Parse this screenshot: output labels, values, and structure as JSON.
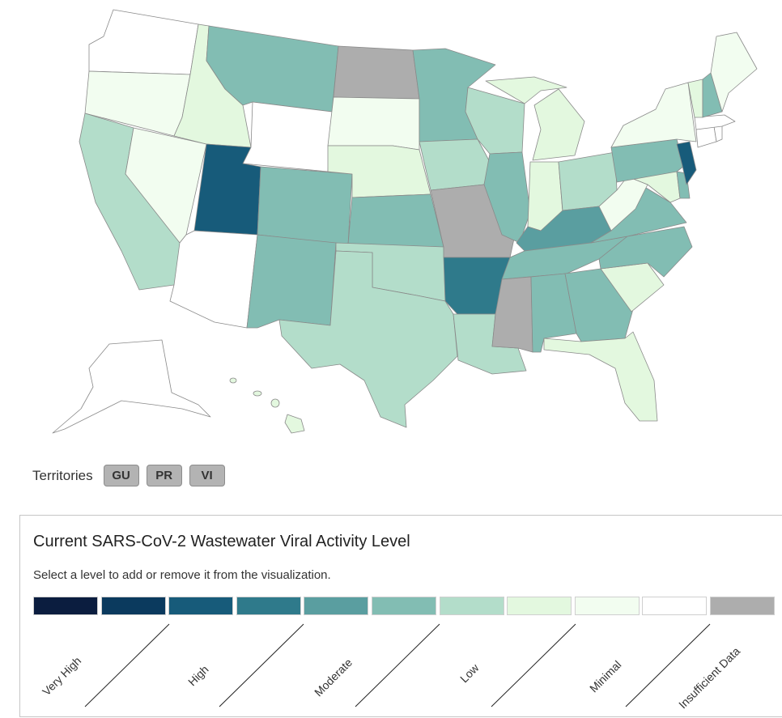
{
  "territories": {
    "label": "Territories",
    "buttons": [
      {
        "code": "GU",
        "level": "Insufficient Data"
      },
      {
        "code": "PR",
        "level": "Insufficient Data"
      },
      {
        "code": "VI",
        "level": "Insufficient Data"
      }
    ]
  },
  "legend": {
    "title": "Current SARS-CoV-2 Wastewater Viral Activity Level",
    "instruction": "Select a level to add or remove it from the visualization.",
    "swatch_colors": [
      "#0b1d3f",
      "#0b3a5e",
      "#175b7a",
      "#2f7a8b",
      "#5a9ea0",
      "#82bdb3",
      "#b3ddca",
      "#e3f8df",
      "#f2fdf0",
      "#ffffff",
      "#adadad"
    ],
    "level_names": [
      "Very High",
      "High",
      "Moderate",
      "Low",
      "Minimal",
      "Insufficient Data"
    ]
  },
  "map": {
    "colors": {
      "high": "#175b7a",
      "moderate_high": "#2f7a8b",
      "moderate": "#5a9ea0",
      "low_moderate": "#82bdb3",
      "low": "#b3ddca",
      "minimal": "#e3f8df",
      "very_minimal": "#f2fdf0",
      "none": "#ffffff",
      "insufficient": "#adadad"
    },
    "states": [
      {
        "name": "Washington",
        "level": "none"
      },
      {
        "name": "Oregon",
        "level": "very_minimal"
      },
      {
        "name": "California",
        "level": "low"
      },
      {
        "name": "Nevada",
        "level": "very_minimal"
      },
      {
        "name": "Idaho",
        "level": "minimal"
      },
      {
        "name": "Montana",
        "level": "low_moderate"
      },
      {
        "name": "Wyoming",
        "level": "none"
      },
      {
        "name": "Utah",
        "level": "high"
      },
      {
        "name": "Arizona",
        "level": "none"
      },
      {
        "name": "Colorado",
        "level": "low_moderate"
      },
      {
        "name": "New Mexico",
        "level": "low_moderate"
      },
      {
        "name": "North Dakota",
        "level": "insufficient"
      },
      {
        "name": "South Dakota",
        "level": "very_minimal"
      },
      {
        "name": "Nebraska",
        "level": "minimal"
      },
      {
        "name": "Kansas",
        "level": "low_moderate"
      },
      {
        "name": "Oklahoma",
        "level": "low"
      },
      {
        "name": "Texas",
        "level": "low"
      },
      {
        "name": "Minnesota",
        "level": "low_moderate"
      },
      {
        "name": "Iowa",
        "level": "low"
      },
      {
        "name": "Missouri",
        "level": "insufficient"
      },
      {
        "name": "Arkansas",
        "level": "moderate_high"
      },
      {
        "name": "Louisiana",
        "level": "low"
      },
      {
        "name": "Wisconsin",
        "level": "low"
      },
      {
        "name": "Illinois",
        "level": "low_moderate"
      },
      {
        "name": "Michigan",
        "level": "minimal"
      },
      {
        "name": "Indiana",
        "level": "minimal"
      },
      {
        "name": "Ohio",
        "level": "low"
      },
      {
        "name": "Kentucky",
        "level": "moderate"
      },
      {
        "name": "Tennessee",
        "level": "low_moderate"
      },
      {
        "name": "Mississippi",
        "level": "insufficient"
      },
      {
        "name": "Alabama",
        "level": "low_moderate"
      },
      {
        "name": "Georgia",
        "level": "low_moderate"
      },
      {
        "name": "Florida",
        "level": "minimal"
      },
      {
        "name": "South Carolina",
        "level": "minimal"
      },
      {
        "name": "North Carolina",
        "level": "low_moderate"
      },
      {
        "name": "Virginia",
        "level": "low_moderate"
      },
      {
        "name": "West Virginia",
        "level": "very_minimal"
      },
      {
        "name": "Maryland",
        "level": "minimal"
      },
      {
        "name": "Delaware",
        "level": "low_moderate"
      },
      {
        "name": "Pennsylvania",
        "level": "low_moderate"
      },
      {
        "name": "New Jersey",
        "level": "high"
      },
      {
        "name": "New York",
        "level": "very_minimal"
      },
      {
        "name": "Connecticut",
        "level": "none"
      },
      {
        "name": "Rhode Island",
        "level": "none"
      },
      {
        "name": "Massachusetts",
        "level": "none"
      },
      {
        "name": "Vermont",
        "level": "minimal"
      },
      {
        "name": "New Hampshire",
        "level": "low_moderate"
      },
      {
        "name": "Maine",
        "level": "very_minimal"
      },
      {
        "name": "Alaska",
        "level": "none"
      },
      {
        "name": "Hawaii",
        "level": "minimal"
      }
    ]
  }
}
